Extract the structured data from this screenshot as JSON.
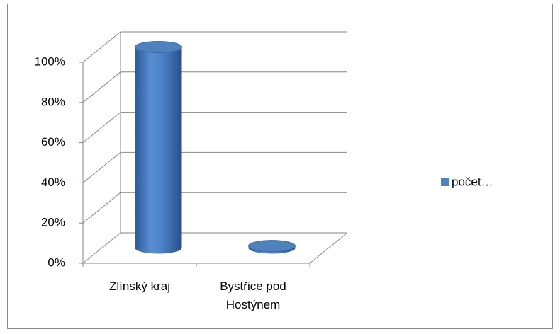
{
  "chart_data": {
    "type": "bar3d-cylinder",
    "categories": [
      "Zlínský kraj",
      "Bystřice pod Hostýnem"
    ],
    "series": [
      {
        "name": "počet…",
        "color": "#4f81bd",
        "values": [
          100,
          1
        ]
      }
    ],
    "ylim": [
      0,
      100
    ],
    "yticks": [
      {
        "value": 0,
        "label": "0%"
      },
      {
        "value": 20,
        "label": "20%"
      },
      {
        "value": 40,
        "label": "40%"
      },
      {
        "value": 60,
        "label": "60%"
      },
      {
        "value": 80,
        "label": "80%"
      },
      {
        "value": 100,
        "label": "100%"
      }
    ],
    "grid": true,
    "legend": "right"
  }
}
